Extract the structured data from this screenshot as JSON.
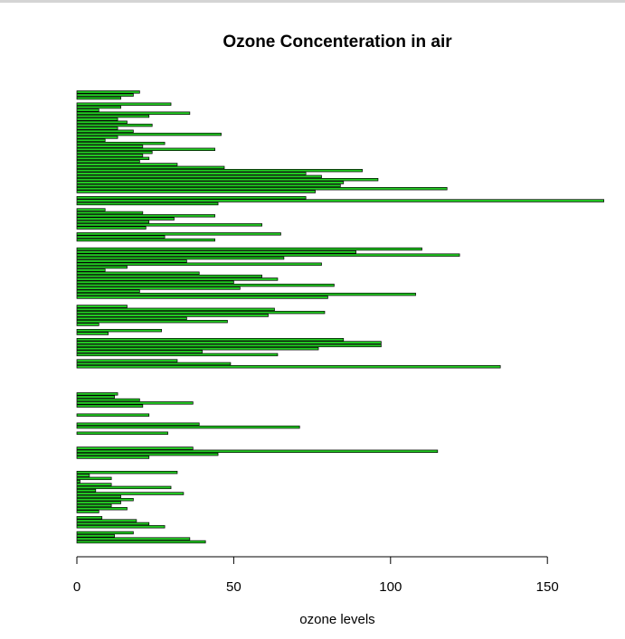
{
  "chart_data": {
    "type": "bar",
    "orientation": "horizontal",
    "title": "Ozone Concenteration in air",
    "xlabel": "ozone levels",
    "ylabel": "",
    "xlim": [
      0,
      168
    ],
    "xticks": [
      0,
      50,
      100,
      150
    ],
    "grid": false,
    "legend": "none",
    "colors": {
      "bar_fill": "#22cc22",
      "bar_stroke": "#000000"
    },
    "values": [
      41,
      36,
      12,
      18,
      null,
      28,
      23,
      19,
      8,
      null,
      7,
      16,
      11,
      14,
      18,
      14,
      34,
      6,
      30,
      11,
      1,
      11,
      4,
      32,
      null,
      null,
      null,
      null,
      23,
      45,
      115,
      37,
      null,
      null,
      null,
      null,
      29,
      null,
      71,
      39,
      null,
      null,
      23,
      null,
      null,
      21,
      37,
      20,
      12,
      13,
      null,
      null,
      null,
      null,
      null,
      null,
      null,
      null,
      135,
      49,
      32,
      null,
      64,
      40,
      77,
      97,
      97,
      85,
      null,
      10,
      27,
      null,
      7,
      48,
      35,
      61,
      79,
      63,
      16,
      null,
      null,
      80,
      108,
      20,
      52,
      82,
      50,
      64,
      59,
      39,
      9,
      16,
      78,
      35,
      66,
      122,
      89,
      110,
      null,
      null,
      44,
      28,
      65,
      null,
      22,
      59,
      23,
      31,
      44,
      21,
      9,
      null,
      45,
      168,
      73,
      null,
      76,
      118,
      84,
      85,
      96,
      78,
      73,
      91,
      47,
      32,
      20,
      23,
      21,
      24,
      44,
      21,
      28,
      9,
      13,
      46,
      18,
      13,
      24,
      16,
      13,
      23,
      36,
      7,
      14,
      30,
      null,
      14,
      18,
      20
    ]
  }
}
